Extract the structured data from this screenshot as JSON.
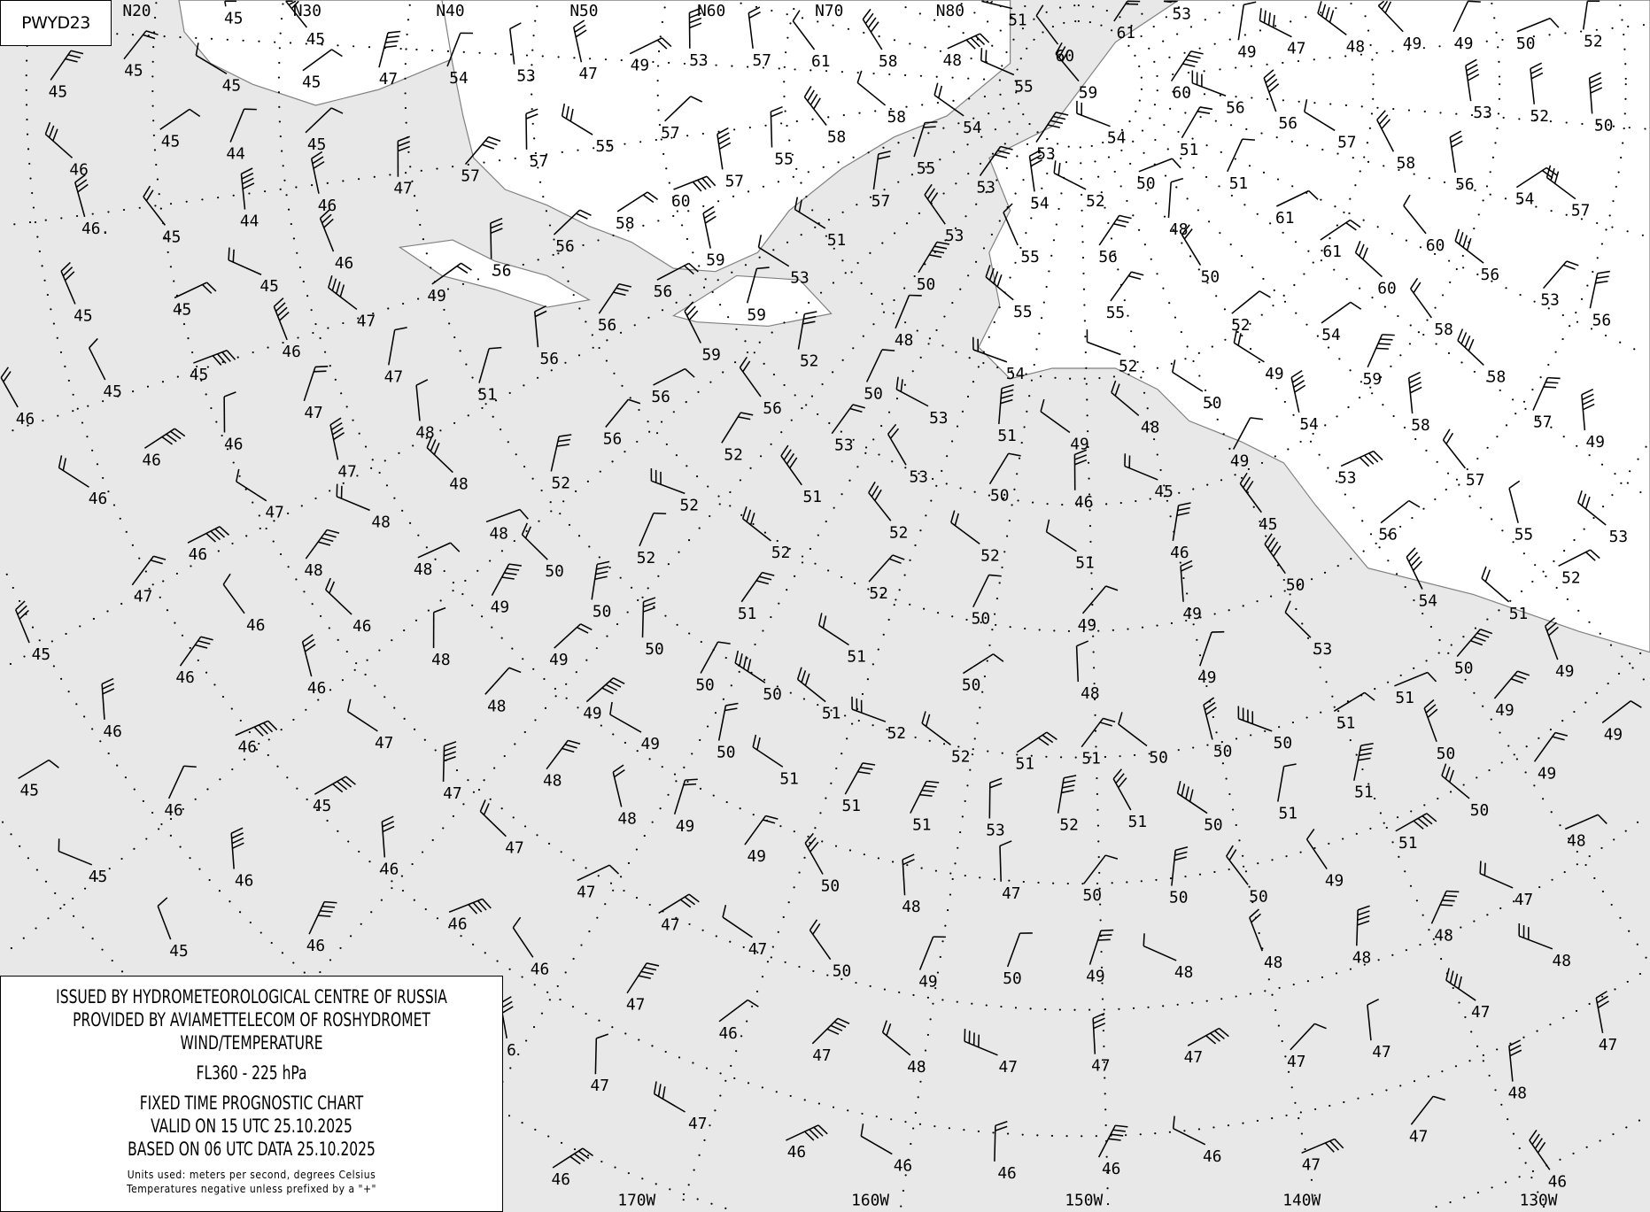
{
  "chart_code": "PWYD23",
  "legend": {
    "line1": "ISSUED BY HYDROMETEOROLOGICAL CENTRE OF RUSSIA",
    "line2": "PROVIDED BY AVIAMETTELECOM OF ROSHYDROMET",
    "line3": "WIND/TEMPERATURE",
    "level": "FL360 - 225 hPa",
    "chart_type": "FIXED TIME PROGNOSTIC CHART",
    "valid": "VALID ON 15 UTC 25.10.2025",
    "based": "BASED ON 06 UTC DATA 25.10.2025",
    "units": "Units used: meters per second, degrees Celsius",
    "note": "Temperatures negative unless prefixed by a \"+\""
  },
  "grid_labels": {
    "top": [
      "N20",
      "N30",
      "N40",
      "N50",
      "N60",
      "N70",
      "N80"
    ],
    "bottom": [
      "170W",
      "160W",
      "150W",
      "140W",
      "130W"
    ]
  },
  "colors": {
    "sea": "#e8e8e8",
    "land": "#ffffff",
    "lines": "#000000",
    "coast": "#808080"
  },
  "temperatures": [
    "45",
    "45",
    "51",
    "53",
    "61",
    "60",
    "49",
    "47",
    "48",
    "49",
    "49",
    "50",
    "52",
    "45",
    "45",
    "45",
    "47",
    "54",
    "53",
    "47",
    "49",
    "53",
    "57",
    "61",
    "58",
    "48",
    "45",
    "55",
    "59",
    "60",
    "56",
    "53",
    "52",
    "50",
    "45",
    "46",
    "44",
    "45",
    "55",
    "57",
    "57",
    "55",
    "58",
    "58",
    "55",
    "54",
    "54",
    "53",
    "51",
    "56",
    "57",
    "58",
    "56",
    "54",
    "57",
    "47",
    "44",
    "46",
    "57",
    "60",
    "57",
    "57",
    "53",
    "54",
    "52",
    "50",
    "51",
    "48",
    "61",
    "46.",
    "45",
    "58",
    "56",
    "59",
    "51",
    "53",
    "55",
    "56",
    "61",
    "60",
    "56",
    "45",
    "46",
    "56",
    "49",
    "56",
    "53",
    "50",
    "50",
    "60",
    "53",
    "56",
    "45",
    "45",
    "47",
    "56",
    "59",
    "55",
    "55",
    "52",
    "54",
    "58",
    "46",
    "51",
    "56",
    "59",
    "52",
    "48",
    "54",
    "52",
    "49",
    "59",
    "58",
    "45",
    "47",
    "45",
    "47",
    "56",
    "50",
    "56",
    "53",
    "51",
    "50",
    "48",
    "49",
    "54",
    "58",
    "57",
    "49",
    "46",
    "48",
    "46",
    "56",
    "52",
    "53",
    "53",
    "50",
    "46",
    "45",
    "49",
    "53",
    "57",
    "46",
    "47",
    "48",
    "52",
    "46",
    "47",
    "52",
    "51",
    "45",
    "55",
    "53",
    "56",
    "48",
    "48",
    "52",
    "52",
    "51",
    "46",
    "46",
    "52",
    "52",
    "48",
    "48",
    "50",
    "52",
    "50",
    "52",
    "54",
    "47",
    "49",
    "50",
    "51",
    "50",
    "49",
    "49",
    "51",
    "46",
    "46",
    "45",
    "53",
    "51",
    "50",
    "49",
    "48",
    "50",
    "48",
    "49",
    "50",
    "49",
    "46",
    "46",
    "50",
    "50",
    "51",
    "49",
    "51",
    "48",
    "49",
    "46",
    "47",
    "51",
    "52",
    "52",
    "51",
    "51",
    "50",
    "50",
    "50",
    "50",
    "49",
    "46",
    "49",
    "50",
    "45",
    "47",
    "48",
    "51",
    "45",
    "46",
    "49",
    "51",
    "51",
    "50",
    "51",
    "51",
    "53",
    "52",
    "51",
    "50",
    "48",
    "49",
    "47",
    "46",
    "51",
    "48",
    "45",
    "46",
    "49",
    "50",
    "47",
    "50",
    "50",
    "50",
    "49",
    "47",
    "47",
    "48",
    "46",
    "47",
    "48",
    "46",
    "45",
    "47",
    "48",
    "48",
    "48",
    "50",
    "49",
    "50",
    "49",
    "48",
    "46",
    "47",
    "46",
    "47",
    "47",
    "47",
    "47",
    "48",
    "47",
    "47",
    "47",
    "47",
    "47",
    "48",
    "47",
    "47",
    "46",
    "46",
    "46",
    "46",
    "46",
    "47",
    "46",
    "46",
    "6"
  ]
}
